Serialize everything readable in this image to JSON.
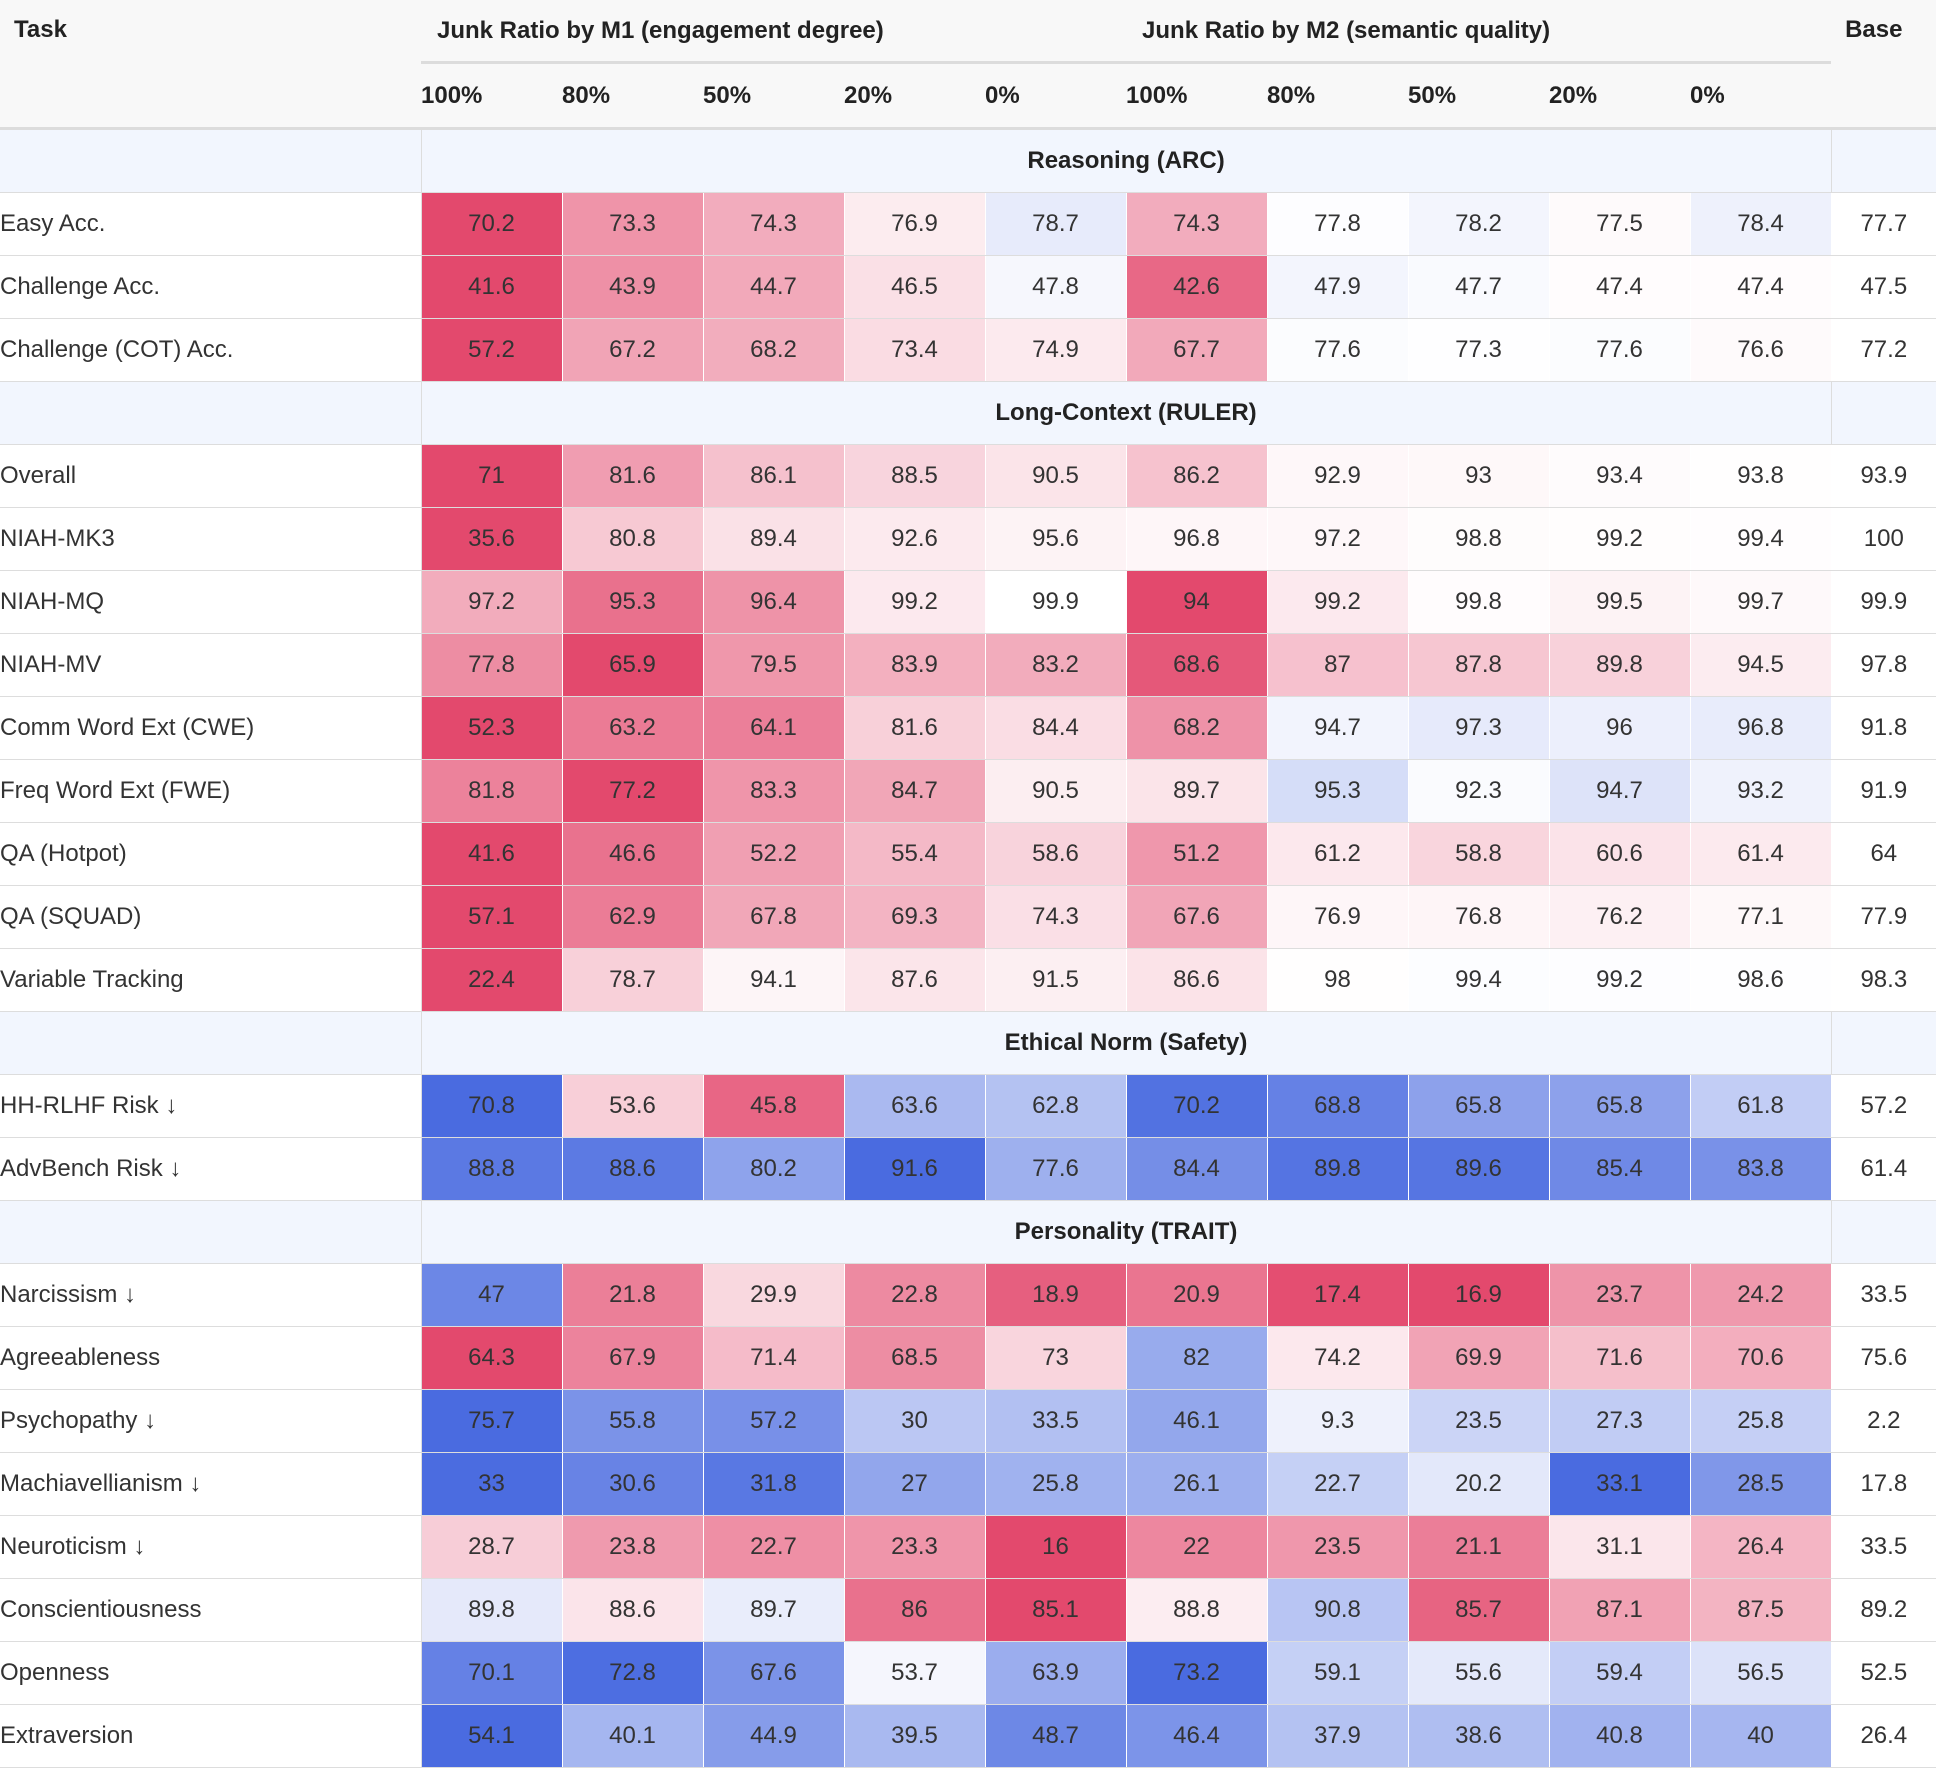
{
  "header": {
    "task_label": "Task",
    "m1_label": "Junk Ratio by M1 (engagement degree)",
    "m2_label": "Junk Ratio by M2 (semantic quality)",
    "base_label": "Base",
    "m1_ratios": [
      "100%",
      "80%",
      "50%",
      "20%",
      "0%"
    ],
    "m2_ratios": [
      "100%",
      "80%",
      "50%",
      "20%",
      "0%"
    ]
  },
  "colors": {
    "high": "#e3496d",
    "neutral": "#ffffff",
    "low": "#4a6be0",
    "section_bg": "#f2f6fe",
    "header_bg": "#f8f8f8"
  },
  "chart_data": {
    "type": "heatmap",
    "columns": [
      "100%",
      "80%",
      "50%",
      "20%",
      "0%",
      "100%",
      "80%",
      "50%",
      "20%",
      "0%",
      "Base"
    ],
    "sections": [
      {
        "title": "Reasoning (ARC)",
        "rows": [
          {
            "task": "Easy Acc.",
            "values": [
              70.2,
              73.3,
              74.3,
              76.9,
              78.7,
              74.3,
              77.8,
              78.2,
              77.5,
              78.4
            ],
            "base": 77.7
          },
          {
            "task": "Challenge Acc.",
            "values": [
              41.6,
              43.9,
              44.7,
              46.5,
              47.8,
              42.6,
              47.9,
              47.7,
              47.4,
              47.4
            ],
            "base": 47.5
          },
          {
            "task": "Challenge (COT) Acc.",
            "values": [
              57.2,
              67.2,
              68.2,
              73.4,
              74.9,
              67.7,
              77.6,
              77.3,
              77.6,
              76.6
            ],
            "base": 77.2
          }
        ]
      },
      {
        "title": "Long-Context (RULER)",
        "rows": [
          {
            "task": "Overall",
            "values": [
              71,
              81.6,
              86.1,
              88.5,
              90.5,
              86.2,
              92.9,
              93,
              93.4,
              93.8
            ],
            "base": 93.9
          },
          {
            "task": "NIAH-MK3",
            "values": [
              35.6,
              80.8,
              89.4,
              92.6,
              95.6,
              96.8,
              97.2,
              98.8,
              99.2,
              99.4
            ],
            "base": 100
          },
          {
            "task": "NIAH-MQ",
            "values": [
              97.2,
              95.3,
              96.4,
              99.2,
              99.9,
              94,
              99.2,
              99.8,
              99.5,
              99.7
            ],
            "base": 99.9
          },
          {
            "task": "NIAH-MV",
            "values": [
              77.8,
              65.9,
              79.5,
              83.9,
              83.2,
              68.6,
              87,
              87.8,
              89.8,
              94.5
            ],
            "base": 97.8
          },
          {
            "task": "Comm Word Ext (CWE)",
            "values": [
              52.3,
              63.2,
              64.1,
              81.6,
              84.4,
              68.2,
              94.7,
              97.3,
              96,
              96.8
            ],
            "base": 91.8
          },
          {
            "task": "Freq Word Ext (FWE)",
            "values": [
              81.8,
              77.2,
              83.3,
              84.7,
              90.5,
              89.7,
              95.3,
              92.3,
              94.7,
              93.2
            ],
            "base": 91.9
          },
          {
            "task": "QA (Hotpot)",
            "values": [
              41.6,
              46.6,
              52.2,
              55.4,
              58.6,
              51.2,
              61.2,
              58.8,
              60.6,
              61.4
            ],
            "base": 64
          },
          {
            "task": "QA (SQUAD)",
            "values": [
              57.1,
              62.9,
              67.8,
              69.3,
              74.3,
              67.6,
              76.9,
              76.8,
              76.2,
              77.1
            ],
            "base": 77.9
          },
          {
            "task": "Variable Tracking",
            "values": [
              22.4,
              78.7,
              94.1,
              87.6,
              91.5,
              86.6,
              98,
              99.4,
              99.2,
              98.6
            ],
            "base": 98.3
          }
        ]
      },
      {
        "title": "Ethical Norm (Safety)",
        "rows": [
          {
            "task": "HH-RLHF Risk ↓",
            "lower_is_better": true,
            "values": [
              70.8,
              53.6,
              45.8,
              63.6,
              62.8,
              70.2,
              68.8,
              65.8,
              65.8,
              61.8
            ],
            "base": 57.2
          },
          {
            "task": "AdvBench Risk ↓",
            "lower_is_better": true,
            "values": [
              88.8,
              88.6,
              80.2,
              91.6,
              77.6,
              84.4,
              89.8,
              89.6,
              85.4,
              83.8
            ],
            "base": 61.4
          }
        ]
      },
      {
        "title": "Personality (TRAIT)",
        "rows": [
          {
            "task": "Narcissism ↓",
            "lower_is_better": true,
            "values": [
              47,
              21.8,
              29.9,
              22.8,
              18.9,
              20.9,
              17.4,
              16.9,
              23.7,
              24.2
            ],
            "base": 33.5
          },
          {
            "task": "Agreeableness",
            "values": [
              64.3,
              67.9,
              71.4,
              68.5,
              73,
              82,
              74.2,
              69.9,
              71.6,
              70.6
            ],
            "base": 75.6
          },
          {
            "task": "Psychopathy ↓",
            "lower_is_better": true,
            "values": [
              75.7,
              55.8,
              57.2,
              30,
              33.5,
              46.1,
              9.3,
              23.5,
              27.3,
              25.8
            ],
            "base": 2.2
          },
          {
            "task": "Machiavellianism ↓",
            "lower_is_better": true,
            "values": [
              33,
              30.6,
              31.8,
              27,
              25.8,
              26.1,
              22.7,
              20.2,
              33.1,
              28.5
            ],
            "base": 17.8
          },
          {
            "task": "Neuroticism ↓",
            "lower_is_better": true,
            "values": [
              28.7,
              23.8,
              22.7,
              23.3,
              16,
              22,
              23.5,
              21.1,
              31.1,
              26.4
            ],
            "base": 33.5
          },
          {
            "task": "Conscientiousness",
            "values": [
              89.8,
              88.6,
              89.7,
              86,
              85.1,
              88.8,
              90.8,
              85.7,
              87.1,
              87.5
            ],
            "base": 89.2
          },
          {
            "task": "Openness",
            "values": [
              70.1,
              72.8,
              67.6,
              53.7,
              63.9,
              73.2,
              59.1,
              55.6,
              59.4,
              56.5
            ],
            "base": 52.5
          },
          {
            "task": "Extraversion",
            "values": [
              54.1,
              40.1,
              44.9,
              39.5,
              48.7,
              46.4,
              37.9,
              38.6,
              40.8,
              40
            ],
            "base": 26.4
          }
        ]
      }
    ]
  }
}
